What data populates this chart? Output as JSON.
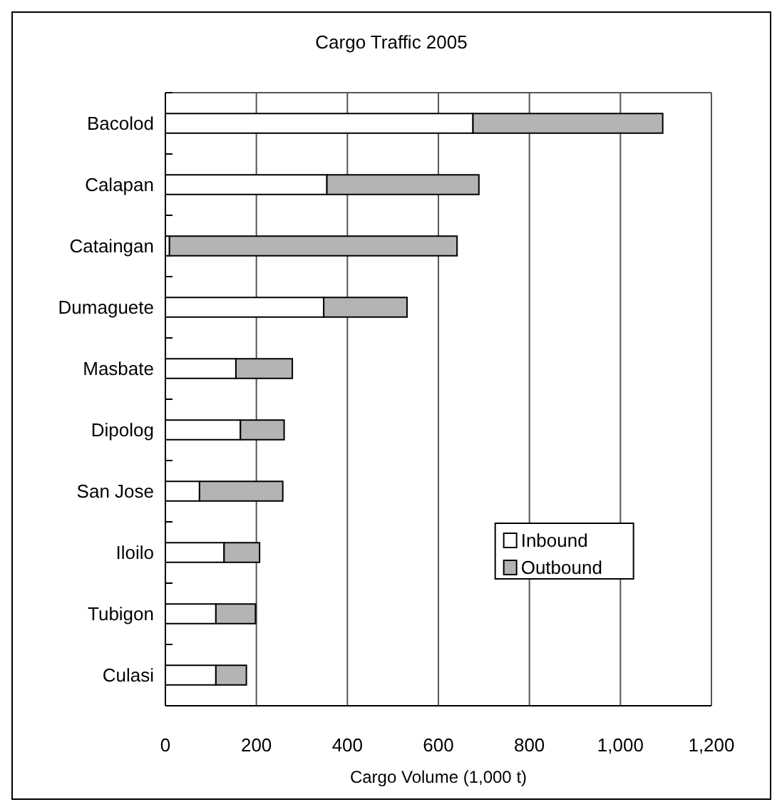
{
  "chart_data": {
    "type": "bar",
    "orientation": "horizontal",
    "stacked": true,
    "title": "Cargo Traffic 2005",
    "xlabel": "Cargo Volume (1,000 t)",
    "categories": [
      "Bacolod",
      "Calapan",
      "Cataingan",
      "Dumaguete",
      "Masbate",
      "Dipolog",
      "San Jose",
      "Iloilo",
      "Tubigon",
      "Culasi"
    ],
    "series": [
      {
        "name": "Inbound",
        "color": "#ffffff",
        "values": [
          676,
          355,
          9,
          348,
          155,
          165,
          75,
          129,
          111,
          111
        ]
      },
      {
        "name": "Outbound",
        "color": "#b4b4b4",
        "values": [
          417,
          334,
          632,
          183,
          124,
          96,
          183,
          78,
          87,
          67
        ]
      }
    ],
    "xlim": [
      0,
      1200
    ],
    "xticks": [
      0,
      200,
      400,
      600,
      800,
      {
        "value": 1000,
        "label": "1,000"
      },
      {
        "value": 1200,
        "label": "1,200"
      }
    ],
    "grid": "x",
    "legend": "bottom right"
  }
}
